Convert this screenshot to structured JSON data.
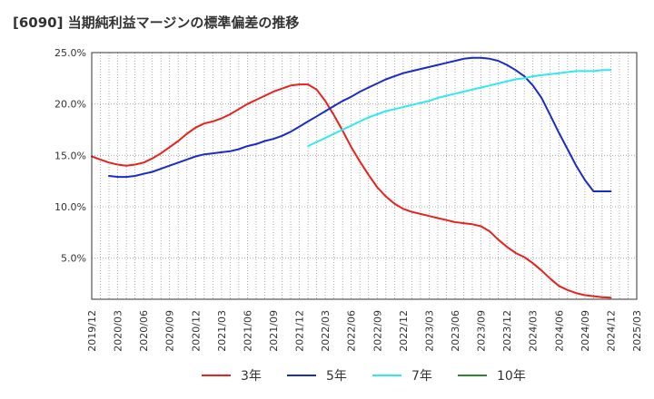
{
  "chart_data": {
    "type": "line",
    "title": "[6090]  当期純利益マージンの標準偏差の推移",
    "xlabel": "",
    "ylabel": "",
    "ylim": [
      1.0,
      25.0
    ],
    "xlim": [
      "2019-12",
      "2025-03"
    ],
    "y_ticks": [
      5.0,
      10.0,
      15.0,
      20.0,
      25.0
    ],
    "y_tick_labels": [
      "5.0%",
      "10.0%",
      "15.0%",
      "20.0%",
      "25.0%"
    ],
    "x_tick_labels": [
      "2019/12",
      "2020/03",
      "2020/06",
      "2020/09",
      "2020/12",
      "2021/03",
      "2021/06",
      "2021/09",
      "2021/12",
      "2022/03",
      "2022/06",
      "2022/09",
      "2022/12",
      "2023/03",
      "2023/06",
      "2023/09",
      "2023/12",
      "2024/03",
      "2024/06",
      "2024/09",
      "2024/12",
      "2025/03"
    ],
    "grid": true,
    "legend_position": "bottom",
    "colors": {
      "3年": "#e8221d",
      "5年": "#1b2bc8",
      "7年": "#30e8f0",
      "10年": "#258c25"
    },
    "series": [
      {
        "name": "3年",
        "x": [
          "2019-12",
          "2020-01",
          "2020-02",
          "2020-03",
          "2020-04",
          "2020-05",
          "2020-06",
          "2020-07",
          "2020-08",
          "2020-09",
          "2020-10",
          "2020-11",
          "2020-12",
          "2021-01",
          "2021-02",
          "2021-03",
          "2021-04",
          "2021-05",
          "2021-06",
          "2021-07",
          "2021-08",
          "2021-09",
          "2021-10",
          "2021-11",
          "2021-12",
          "2022-01",
          "2022-02",
          "2022-03",
          "2022-04",
          "2022-05",
          "2022-06",
          "2022-07",
          "2022-08",
          "2022-09",
          "2022-10",
          "2022-11",
          "2022-12",
          "2023-01",
          "2023-02",
          "2023-03",
          "2023-04",
          "2023-05",
          "2023-06",
          "2023-07",
          "2023-08",
          "2023-09",
          "2023-10",
          "2023-11",
          "2023-12",
          "2024-01",
          "2024-02",
          "2024-03",
          "2024-04",
          "2024-05",
          "2024-06",
          "2024-07",
          "2024-08",
          "2024-09",
          "2024-10",
          "2024-11",
          "2024-12"
        ],
        "values": [
          14.9,
          14.6,
          14.3,
          14.1,
          14.0,
          14.1,
          14.3,
          14.7,
          15.2,
          15.8,
          16.4,
          17.1,
          17.7,
          18.1,
          18.3,
          18.6,
          19.0,
          19.5,
          20.0,
          20.4,
          20.8,
          21.2,
          21.5,
          21.8,
          21.9,
          21.9,
          21.4,
          20.3,
          18.9,
          17.4,
          15.8,
          14.4,
          13.1,
          11.9,
          11.0,
          10.3,
          9.8,
          9.5,
          9.3,
          9.1,
          8.9,
          8.7,
          8.5,
          8.4,
          8.3,
          8.1,
          7.6,
          6.8,
          6.1,
          5.5,
          5.1,
          4.5,
          3.8,
          3.0,
          2.3,
          1.9,
          1.6,
          1.4,
          1.3,
          1.2,
          1.15
        ]
      },
      {
        "name": "5年",
        "x": [
          "2020-02",
          "2020-03",
          "2020-04",
          "2020-05",
          "2020-06",
          "2020-07",
          "2020-08",
          "2020-09",
          "2020-10",
          "2020-11",
          "2020-12",
          "2021-01",
          "2021-02",
          "2021-03",
          "2021-04",
          "2021-05",
          "2021-06",
          "2021-07",
          "2021-08",
          "2021-09",
          "2021-10",
          "2021-11",
          "2021-12",
          "2022-01",
          "2022-02",
          "2022-03",
          "2022-04",
          "2022-05",
          "2022-06",
          "2022-07",
          "2022-08",
          "2022-09",
          "2022-10",
          "2022-11",
          "2022-12",
          "2023-01",
          "2023-02",
          "2023-03",
          "2023-04",
          "2023-05",
          "2023-06",
          "2023-07",
          "2023-08",
          "2023-09",
          "2023-10",
          "2023-11",
          "2023-12",
          "2024-01",
          "2024-02",
          "2024-03",
          "2024-04",
          "2024-05",
          "2024-06",
          "2024-07",
          "2024-08",
          "2024-09",
          "2024-10",
          "2024-11",
          "2024-12"
        ],
        "values": [
          13.0,
          12.9,
          12.9,
          13.0,
          13.2,
          13.4,
          13.7,
          14.0,
          14.3,
          14.6,
          14.9,
          15.1,
          15.2,
          15.3,
          15.4,
          15.6,
          15.9,
          16.1,
          16.4,
          16.6,
          16.9,
          17.3,
          17.8,
          18.3,
          18.8,
          19.3,
          19.8,
          20.3,
          20.7,
          21.2,
          21.6,
          22.0,
          22.4,
          22.7,
          23.0,
          23.2,
          23.4,
          23.6,
          23.8,
          24.0,
          24.2,
          24.4,
          24.5,
          24.5,
          24.4,
          24.2,
          23.8,
          23.3,
          22.7,
          21.8,
          20.6,
          18.9,
          17.2,
          15.6,
          14.0,
          12.6,
          11.5,
          11.5,
          11.5
        ]
      },
      {
        "name": "7年",
        "x": [
          "2022-01",
          "2022-02",
          "2022-03",
          "2022-04",
          "2022-05",
          "2022-06",
          "2022-07",
          "2022-08",
          "2022-09",
          "2022-10",
          "2022-11",
          "2022-12",
          "2023-01",
          "2023-02",
          "2023-03",
          "2023-04",
          "2023-05",
          "2023-06",
          "2023-07",
          "2023-08",
          "2023-09",
          "2023-10",
          "2023-11",
          "2023-12",
          "2024-01",
          "2024-02",
          "2024-03",
          "2024-04",
          "2024-05",
          "2024-06",
          "2024-07",
          "2024-08",
          "2024-09",
          "2024-10",
          "2024-11",
          "2024-12"
        ],
        "values": [
          15.9,
          16.3,
          16.7,
          17.1,
          17.5,
          17.9,
          18.3,
          18.7,
          19.0,
          19.3,
          19.5,
          19.7,
          19.9,
          20.1,
          20.3,
          20.6,
          20.8,
          21.0,
          21.2,
          21.4,
          21.6,
          21.8,
          22.0,
          22.2,
          22.4,
          22.5,
          22.7,
          22.8,
          22.9,
          23.0,
          23.1,
          23.2,
          23.2,
          23.2,
          23.3,
          23.3
        ]
      },
      {
        "name": "10年",
        "x": [],
        "values": []
      }
    ]
  }
}
